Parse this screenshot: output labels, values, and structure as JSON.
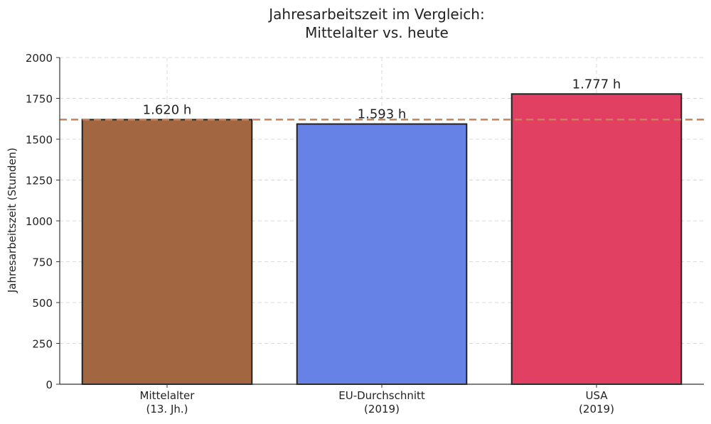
{
  "chart_data": {
    "type": "bar",
    "title_lines": [
      "Jahresarbeitszeit im Vergleich:",
      "Mittelalter vs. heute"
    ],
    "ylabel": "Jahresarbeitszeit (Stunden)",
    "xlabel": "",
    "ylim": [
      0,
      2000
    ],
    "yticks": [
      0,
      250,
      500,
      750,
      1000,
      1250,
      1500,
      1750,
      2000
    ],
    "ytick_labels": [
      "0",
      "250",
      "500",
      "750",
      "1000",
      "1250",
      "1500",
      "1750",
      "2000"
    ],
    "grid": true,
    "categories": [
      {
        "line1": "Mittelalter",
        "line2": "(13. Jh.)"
      },
      {
        "line1": "EU-Durchschnitt",
        "line2": "(2019)"
      },
      {
        "line1": "USA",
        "line2": "(2019)"
      }
    ],
    "values": [
      1620,
      1593,
      1777
    ],
    "value_labels": [
      "1.620 h",
      "1.593 h",
      "1.777 h"
    ],
    "colors": [
      "#a0643c",
      "#6480e6",
      "#e03c60"
    ],
    "reference_line": {
      "value": 1620,
      "color": "#c8825a",
      "style": "dashed"
    }
  }
}
